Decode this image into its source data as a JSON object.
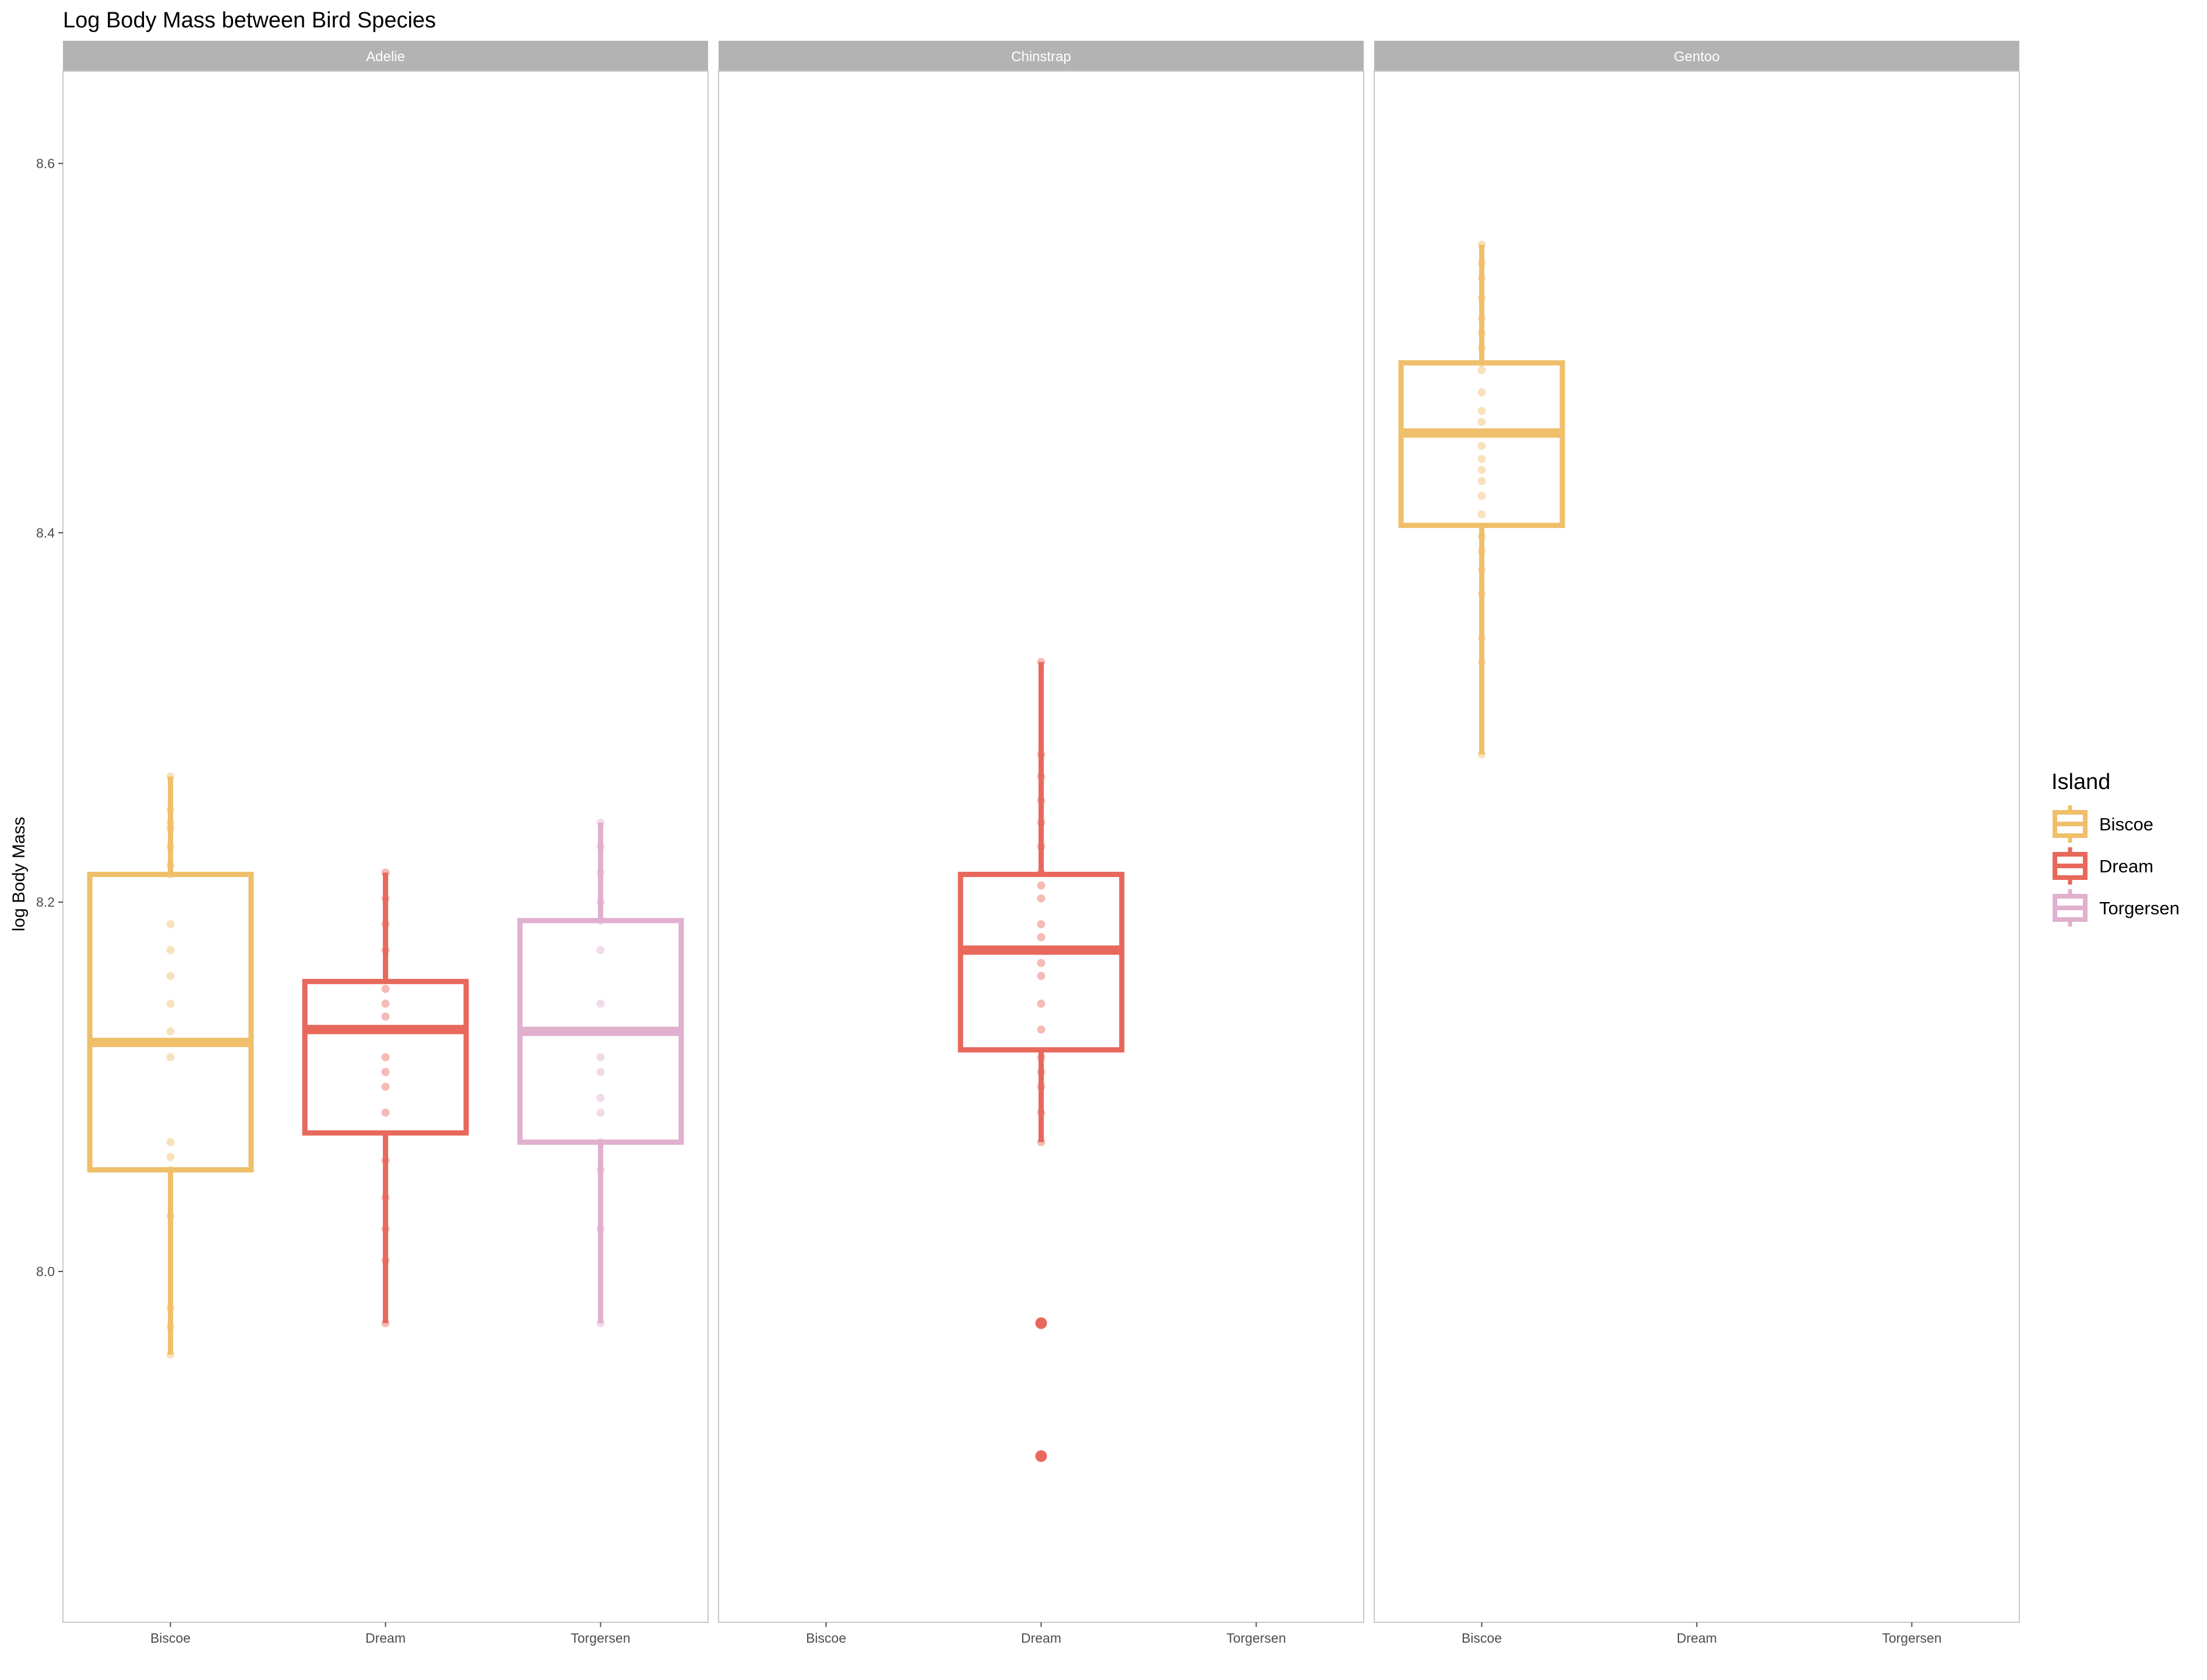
{
  "chart_data": {
    "type": "box",
    "title": "Log Body Mass between Bird Species",
    "ylabel": "log Body Mass",
    "xlabel": "",
    "ylim": [
      7.81,
      8.65
    ],
    "yticks": [
      8.0,
      8.2,
      8.4,
      8.6
    ],
    "ytick_labels": [
      "8.0",
      "8.2",
      "8.4",
      "8.6"
    ],
    "categories": [
      "Biscoe",
      "Dream",
      "Torgersen"
    ],
    "legend": {
      "title": "Island",
      "position": "right",
      "entries": [
        {
          "label": "Biscoe",
          "color": "#EFBF6A"
        },
        {
          "label": "Dream",
          "color": "#E8685C"
        },
        {
          "label": "Torgersen",
          "color": "#E0B0CE"
        }
      ]
    },
    "facets": [
      {
        "label": "Adelie",
        "boxes": [
          {
            "category": "Biscoe",
            "lower_whisker": 7.955,
            "q1": 8.055,
            "median": 8.124,
            "q3": 8.215,
            "upper_whisker": 8.268,
            "outliers": [],
            "points": [
              7.955,
              7.97,
              7.98,
              8.03,
              8.055,
              8.062,
              8.07,
              8.116,
              8.13,
              8.145,
              8.16,
              8.174,
              8.188,
              8.215,
              8.22,
              8.23,
              8.24,
              8.243,
              8.25,
              8.268
            ]
          },
          {
            "category": "Dream",
            "lower_whisker": 7.972,
            "q1": 8.075,
            "median": 8.131,
            "q3": 8.157,
            "upper_whisker": 8.216,
            "outliers": [],
            "points": [
              7.972,
              8.006,
              8.023,
              8.04,
              8.06,
              8.086,
              8.1,
              8.108,
              8.116,
              8.138,
              8.145,
              8.153,
              8.174,
              8.188,
              8.202,
              8.216
            ]
          },
          {
            "category": "Torgersen",
            "lower_whisker": 7.972,
            "q1": 8.07,
            "median": 8.13,
            "q3": 8.19,
            "upper_whisker": 8.243,
            "outliers": [],
            "points": [
              7.972,
              8.023,
              8.055,
              8.07,
              8.086,
              8.094,
              8.108,
              8.116,
              8.145,
              8.174,
              8.19,
              8.2,
              8.216,
              8.23,
              8.243
            ]
          }
        ]
      },
      {
        "label": "Chinstrap",
        "boxes": [
          {
            "category": "Dream",
            "lower_whisker": 8.07,
            "q1": 8.12,
            "median": 8.174,
            "q3": 8.215,
            "upper_whisker": 8.33,
            "outliers": [
              7.972,
              7.9
            ],
            "points": [
              8.07,
              8.086,
              8.1,
              8.108,
              8.116,
              8.131,
              8.145,
              8.16,
              8.167,
              8.181,
              8.188,
              8.202,
              8.209,
              8.216,
              8.23,
              8.243,
              8.255,
              8.268,
              8.28,
              8.33
            ]
          }
        ]
      },
      {
        "label": "Gentoo",
        "boxes": [
          {
            "category": "Biscoe",
            "lower_whisker": 8.28,
            "q1": 8.404,
            "median": 8.454,
            "q3": 8.492,
            "upper_whisker": 8.556,
            "outliers": [],
            "points": [
              8.28,
              8.33,
              8.343,
              8.367,
              8.38,
              8.39,
              8.398,
              8.41,
              8.42,
              8.428,
              8.434,
              8.44,
              8.447,
              8.46,
              8.466,
              8.476,
              8.488,
              8.492,
              8.5,
              8.508,
              8.516,
              8.527,
              8.538,
              8.546,
              8.556
            ]
          }
        ]
      }
    ]
  }
}
